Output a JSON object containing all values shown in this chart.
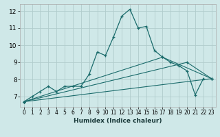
{
  "xlabel": "Humidex (Indice chaleur)",
  "background_color": "#cfe8e8",
  "grid_color": "#b0cccc",
  "line_color": "#1a6b6b",
  "xlim": [
    -0.5,
    23.5
  ],
  "ylim": [
    6.4,
    12.4
  ],
  "xticks": [
    0,
    1,
    2,
    3,
    4,
    5,
    6,
    7,
    8,
    9,
    10,
    11,
    12,
    13,
    14,
    15,
    16,
    17,
    18,
    19,
    20,
    21,
    22,
    23
  ],
  "yticks": [
    7,
    8,
    9,
    10,
    11,
    12
  ],
  "series": [
    {
      "x": [
        0,
        1,
        2,
        3,
        4,
        5,
        6,
        7,
        8,
        9,
        10,
        11,
        12,
        13,
        14,
        15,
        16,
        17,
        18,
        19,
        20,
        21,
        22
      ],
      "y": [
        6.7,
        7.0,
        7.3,
        7.6,
        7.3,
        7.6,
        7.6,
        7.6,
        8.3,
        9.6,
        9.4,
        10.5,
        11.7,
        12.1,
        11.0,
        11.1,
        9.7,
        9.3,
        9.0,
        8.8,
        8.5,
        7.1,
        8.05
      ]
    },
    {
      "x": [
        0,
        23
      ],
      "y": [
        6.7,
        8.05
      ]
    },
    {
      "x": [
        0,
        20,
        23
      ],
      "y": [
        6.7,
        9.0,
        8.05
      ]
    },
    {
      "x": [
        0,
        17,
        23
      ],
      "y": [
        6.7,
        9.3,
        8.05
      ]
    }
  ]
}
